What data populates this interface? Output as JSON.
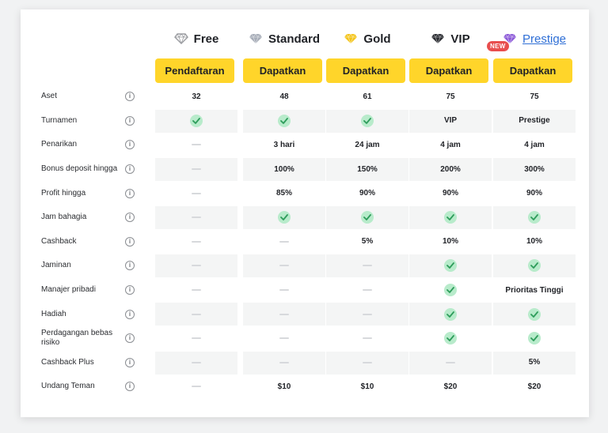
{
  "tiers": [
    {
      "key": "free",
      "name": "Free",
      "icon": "outline-diamond-icon",
      "cta": "Pendaftaran",
      "color": "#9a9ca0",
      "is_link": false
    },
    {
      "key": "standard",
      "name": "Standard",
      "icon": "silver-diamond-icon",
      "cta": "Dapatkan",
      "color": "#a7adb8",
      "is_link": false
    },
    {
      "key": "gold",
      "name": "Gold",
      "icon": "gold-diamond-icon",
      "cta": "Dapatkan",
      "color": "#f4c419",
      "is_link": false
    },
    {
      "key": "vip",
      "name": "VIP",
      "icon": "black-diamond-icon",
      "cta": "Dapatkan",
      "color": "#2a2c31",
      "is_link": false
    },
    {
      "key": "prestige",
      "name": "Prestige",
      "icon": "purple-diamond-icon",
      "cta": "Dapatkan",
      "color": "#8c5ad8",
      "is_link": true,
      "badge": "NEW"
    }
  ],
  "colors": {
    "accent": "#ffd52a",
    "check_bg": "#b8ebcb",
    "check_mark": "#2e9d5b",
    "badge": "#e84e4e",
    "link": "#2f6fd6"
  },
  "rows": [
    {
      "label": "Aset",
      "values": [
        "32",
        "48",
        "61",
        "75",
        "75"
      ]
    },
    {
      "label": "Turnamen",
      "values": [
        "check",
        "check",
        "check",
        "VIP",
        "Prestige"
      ]
    },
    {
      "label": "Penarikan",
      "values": [
        "dash",
        "3 hari",
        "24 jam",
        "4 jam",
        "4 jam"
      ]
    },
    {
      "label": "Bonus deposit hingga",
      "values": [
        "dash",
        "100%",
        "150%",
        "200%",
        "300%"
      ]
    },
    {
      "label": "Profit hingga",
      "values": [
        "dash",
        "85%",
        "90%",
        "90%",
        "90%"
      ]
    },
    {
      "label": "Jam bahagia",
      "values": [
        "dash",
        "check",
        "check",
        "check",
        "check"
      ]
    },
    {
      "label": "Cashback",
      "values": [
        "dash",
        "dash",
        "5%",
        "10%",
        "10%"
      ]
    },
    {
      "label": "Jaminan",
      "values": [
        "dash",
        "dash",
        "dash",
        "check",
        "check"
      ]
    },
    {
      "label": "Manajer pribadi",
      "values": [
        "dash",
        "dash",
        "dash",
        "check",
        "Prioritas Tinggi"
      ]
    },
    {
      "label": "Hadiah",
      "values": [
        "dash",
        "dash",
        "dash",
        "check",
        "check"
      ]
    },
    {
      "label": "Perdagangan bebas risiko",
      "values": [
        "dash",
        "dash",
        "dash",
        "check",
        "check"
      ]
    },
    {
      "label": "Cashback Plus",
      "values": [
        "dash",
        "dash",
        "dash",
        "dash",
        "5%"
      ]
    },
    {
      "label": "Undang Teman",
      "values": [
        "dash",
        "$10",
        "$10",
        "$20",
        "$20"
      ]
    }
  ],
  "info_glyph": "i"
}
